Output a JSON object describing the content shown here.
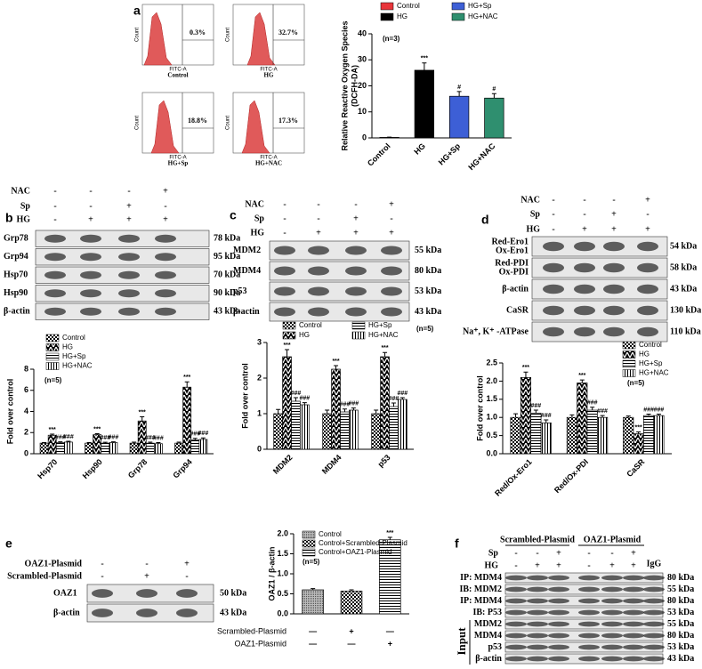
{
  "panel_labels": [
    "a",
    "b",
    "c",
    "d",
    "e",
    "f"
  ],
  "flow_cytometry": {
    "y_label": "Count",
    "x_label": "FITC-A",
    "plots": [
      {
        "label": "Control",
        "percent": "0.3%"
      },
      {
        "label": "HG",
        "percent": "32.7%"
      },
      {
        "label": "HG+Sp",
        "percent": "18.8%"
      },
      {
        "label": "HG+NAC",
        "percent": "17.3%"
      }
    ]
  },
  "chart_data": [
    {
      "type": "bar",
      "y_label": [
        "Relative Reactive Oxygen Species",
        "(DCFH-DA)"
      ],
      "note": "(n=3)",
      "categories": [
        "Control",
        "HG",
        "HG+Sp",
        "HG+NAC"
      ],
      "colors": [
        "#e8353a",
        "#000000",
        "#3d5fd6",
        "#2f8f6f"
      ],
      "values": [
        0.2,
        26,
        16,
        15.3
      ],
      "errors": [
        0.1,
        2.8,
        1.8,
        1.7
      ],
      "significance": [
        null,
        "***",
        "#",
        "#"
      ],
      "ylim": [
        0,
        40
      ],
      "yticks": [
        0,
        10,
        20,
        30,
        40
      ]
    },
    {
      "type": "bar",
      "y_label": [
        "Fold over control"
      ],
      "note": "(n=5)",
      "categories": [
        "Hsp70",
        "Hsp90",
        "Grp78",
        "Grp94"
      ],
      "series": [
        {
          "name": "Control",
          "pattern": "checker",
          "values": [
            1,
            1,
            1,
            1
          ],
          "errors": [
            0.05,
            0.05,
            0.1,
            0.1
          ]
        },
        {
          "name": "HG",
          "pattern": "diagonal",
          "values": [
            1.75,
            1.8,
            3.1,
            6.3
          ],
          "errors": [
            0.1,
            0.1,
            0.4,
            0.5
          ],
          "significance": [
            "***",
            "***",
            "***",
            "***"
          ]
        },
        {
          "name": "HG+Sp",
          "pattern": "horizontal",
          "values": [
            1.05,
            1.0,
            1.0,
            1.3
          ],
          "errors": [
            0.08,
            0.08,
            0.1,
            0.15
          ],
          "significance": [
            "###",
            "###",
            "###",
            "###"
          ]
        },
        {
          "name": "HG+NAC",
          "pattern": "vertical",
          "values": [
            1.1,
            1.05,
            0.95,
            1.35
          ],
          "errors": [
            0.08,
            0.08,
            0.1,
            0.15
          ],
          "significance": [
            "###",
            "###",
            "###",
            "###"
          ]
        }
      ],
      "ylim": [
        0,
        8
      ],
      "yticks": [
        0,
        2,
        4,
        6,
        8
      ]
    },
    {
      "type": "bar",
      "y_label": [
        "Fold over control"
      ],
      "note": "(n=5)",
      "categories": [
        "MDM2",
        "MDM4",
        "p53"
      ],
      "series": [
        {
          "name": "Control",
          "pattern": "checker",
          "values": [
            1,
            1,
            1
          ],
          "errors": [
            0.12,
            0.1,
            0.1
          ]
        },
        {
          "name": "HG",
          "pattern": "diagonal",
          "values": [
            2.6,
            2.25,
            2.6
          ],
          "errors": [
            0.2,
            0.1,
            0.12
          ],
          "significance": [
            "***",
            "***",
            "***"
          ]
        },
        {
          "name": "HG+Sp",
          "pattern": "horizontal",
          "values": [
            1.35,
            1.05,
            1.2
          ],
          "errors": [
            0.1,
            0.08,
            0.1
          ],
          "significance": [
            "###",
            "###",
            "###"
          ]
        },
        {
          "name": "HG+NAC",
          "pattern": "vertical",
          "values": [
            1.25,
            1.1,
            1.4
          ],
          "errors": [
            0.06,
            0.06,
            0.05
          ],
          "significance": [
            "###",
            "###",
            "###"
          ]
        }
      ],
      "ylim": [
        0,
        3
      ],
      "yticks": [
        0,
        1,
        2,
        3
      ]
    },
    {
      "type": "bar",
      "y_label": [
        "Fold over control"
      ],
      "note": "(n=5)",
      "categories": [
        "Red/Ox-Ero1",
        "Red/Ox-PDI",
        "CaSR"
      ],
      "series": [
        {
          "name": "Control",
          "pattern": "checker",
          "values": [
            1.0,
            1.0,
            1.0
          ],
          "errors": [
            0.1,
            0.07,
            0.04
          ]
        },
        {
          "name": "HG",
          "pattern": "diagonal",
          "values": [
            2.1,
            1.95,
            0.55
          ],
          "errors": [
            0.15,
            0.08,
            0.05
          ],
          "significance": [
            "***",
            "***",
            "***"
          ]
        },
        {
          "name": "HG+Sp",
          "pattern": "horizontal",
          "values": [
            1.12,
            1.2,
            1.05
          ],
          "errors": [
            0.08,
            0.08,
            0.04
          ],
          "significance": [
            "###",
            "###",
            "###"
          ]
        },
        {
          "name": "HG+NAC",
          "pattern": "vertical",
          "values": [
            0.85,
            1.0,
            1.05
          ],
          "errors": [
            0.08,
            0.05,
            0.04
          ],
          "significance": [
            "###",
            "###",
            "###"
          ]
        }
      ],
      "ylim": [
        0,
        2.5
      ],
      "yticks": [
        {
          "value": 0,
          "label": "0.0"
        },
        0.5,
        {
          "value": 1,
          "label": "1.0"
        },
        1.5,
        {
          "value": 2,
          "label": "2.0"
        },
        2.5
      ]
    },
    {
      "type": "bar",
      "y_label": [
        "OAZ1 / β-actin"
      ],
      "note": "(n=5)",
      "categories": [
        "Control",
        "Control+Scrambled-Plasmid",
        "Control+OAZ1-Plasmid"
      ],
      "patterns": [
        "gray",
        "checker",
        "horizontal"
      ],
      "values": [
        0.6,
        0.57,
        1.85
      ],
      "errors": [
        0.03,
        0.03,
        0.06
      ],
      "significance": [
        null,
        null,
        "***"
      ],
      "conditions": [
        {
          "label": "Scrambled-Plasmid",
          "signs": [
            "—",
            "+",
            "—"
          ]
        },
        {
          "label": "OAZ1-Plasmid",
          "signs": [
            "—",
            "—",
            "+"
          ]
        }
      ],
      "ylim": [
        0,
        2
      ],
      "yticks": [
        {
          "value": 0,
          "label": "0.0"
        },
        0.5,
        {
          "value": 1,
          "label": "1.0"
        },
        1.5,
        {
          "value": 2,
          "label": "2.0"
        }
      ]
    }
  ],
  "blots": [
    {
      "conditions": [
        {
          "label": "NAC",
          "signs": [
            "-",
            "-",
            "-",
            "+"
          ]
        },
        {
          "label": "Sp",
          "signs": [
            "-",
            "-",
            "+",
            "-"
          ]
        },
        {
          "label": "HG",
          "signs": [
            "-",
            "+",
            "+",
            "+"
          ]
        }
      ],
      "bands": [
        {
          "label": "Grp78",
          "size": "78 kDa"
        },
        {
          "label": "Grp94",
          "size": "95 kDa"
        },
        {
          "label": "Hsp70",
          "size": "70 kDa"
        },
        {
          "label": "Hsp90",
          "size": "90 kDa"
        },
        {
          "label": "β-actin",
          "size": "43 kDa"
        }
      ]
    },
    {
      "conditions": [
        {
          "label": "NAC",
          "signs": [
            "-",
            "-",
            "-",
            "+"
          ]
        },
        {
          "label": "Sp",
          "signs": [
            "-",
            "-",
            "+",
            "-"
          ]
        },
        {
          "label": "HG",
          "signs": [
            "-",
            "+",
            "+",
            "+"
          ]
        }
      ],
      "bands": [
        {
          "label": "MDM2",
          "size": "55 kDa"
        },
        {
          "label": "MDM4",
          "size": "80 kDa"
        },
        {
          "label": "p53",
          "size": "53 kDa"
        },
        {
          "label": "β-actin",
          "size": "43 kDa"
        }
      ]
    },
    {
      "conditions": [
        {
          "label": "NAC",
          "signs": [
            "-",
            "-",
            "-",
            "+"
          ]
        },
        {
          "label": "Sp",
          "signs": [
            "-",
            "-",
            "+",
            "-"
          ]
        },
        {
          "label": "HG",
          "signs": [
            "-",
            "+",
            "+",
            "+"
          ]
        }
      ],
      "bands": [
        {
          "label": [
            "Red-Ero1",
            "Ox-Ero1"
          ],
          "size": "54 kDa"
        },
        {
          "label": [
            "Red-PDI",
            "Ox-PDI"
          ],
          "size": "58 kDa"
        },
        {
          "label": "β-actin",
          "size": "43 kDa"
        },
        {
          "label": "CaSR",
          "size": "130 kDa"
        },
        {
          "label": "Na⁺, K⁺ -ATPase",
          "size": "110 kDa"
        }
      ]
    },
    {
      "conditions": [
        {
          "label": "OAZ1-Plasmid",
          "signs": [
            "-",
            "-",
            "+"
          ]
        },
        {
          "label": "Scrambled-Plasmid",
          "signs": [
            "-",
            "+",
            "-"
          ]
        }
      ],
      "bands": [
        {
          "label": "OAZ1",
          "size": "50 kDa"
        },
        {
          "label": "β-actin",
          "size": "43 kDa"
        }
      ]
    },
    {
      "headers": [
        "Scrambled-Plasmid",
        "OAZ1-Plasmid"
      ],
      "control": "IgG",
      "group_label": "Input",
      "conditions": [
        {
          "label": "Sp",
          "signs": [
            "-",
            "-",
            "+",
            "-",
            "-",
            "+"
          ]
        },
        {
          "label": "HG",
          "signs": [
            "-",
            "+",
            "+",
            "-",
            "+",
            "+"
          ]
        }
      ],
      "bands": [
        {
          "label": "IP: MDM4",
          "size": "80 kDa"
        },
        {
          "label": "IB: MDM2",
          "size": "55 kDa"
        },
        {
          "label": "IP: MDM4",
          "size": "80 kDa"
        },
        {
          "label": "IB: P53",
          "size": "53 kDa"
        },
        {
          "label": "MDM2",
          "size": "55 kDa"
        },
        {
          "label": "MDM4",
          "size": "80 kDa"
        },
        {
          "label": "p53",
          "size": "53 kDa"
        },
        {
          "label": "β-actin",
          "size": "43 kDa"
        }
      ]
    }
  ]
}
